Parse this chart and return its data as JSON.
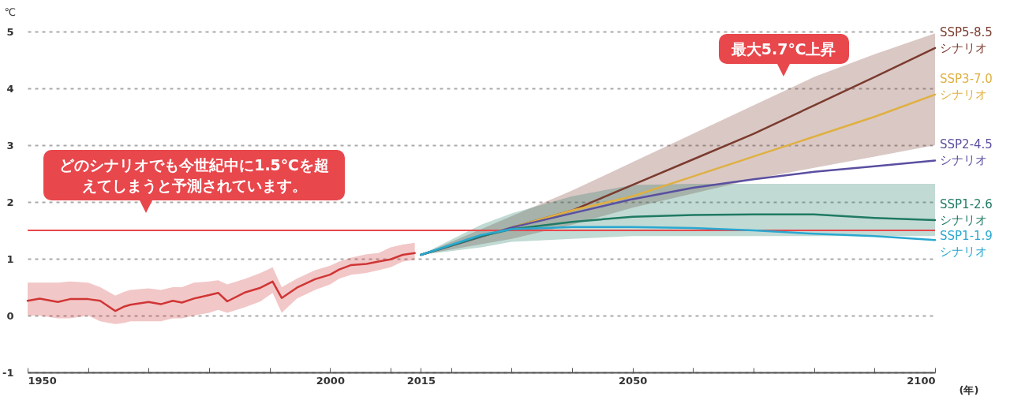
{
  "chart_data": {
    "type": "line",
    "ylabel": "℃",
    "xlabel": "(年)",
    "xlim": [
      1950,
      2100
    ],
    "xticks": [
      1950,
      {
        "value": 1960,
        "label": null
      },
      {
        "value": 1970,
        "label": null
      },
      {
        "value": 1980,
        "label": null
      },
      {
        "value": 1990,
        "label": null
      },
      2000,
      {
        "value": 2010,
        "label": null
      },
      2015,
      {
        "value": 2020,
        "label": null
      },
      {
        "value": 2030,
        "label": null
      },
      {
        "value": 2040,
        "label": null
      },
      2050,
      {
        "value": 2060,
        "label": null
      },
      {
        "value": 2070,
        "label": null
      },
      {
        "value": 2080,
        "label": null
      },
      {
        "value": 2090,
        "label": null
      },
      2100
    ],
    "ylim": [
      -1,
      5
    ],
    "yticks": [
      -1,
      0,
      1,
      2,
      3,
      4,
      5
    ],
    "grid": "y",
    "ref_lines": [
      {
        "axis": "y",
        "value": 1.5,
        "color": "#e8474c"
      }
    ],
    "annotations": [
      "どのシナリオでも今世紀中に1.5℃を超えてしまうと予測されています。",
      {
        "text": "最大5.7℃上昇",
        "x": 2075,
        "y": 3.9
      }
    ],
    "series": [
      {
        "color": "#d03535",
        "x": [
          1950,
          1952,
          1955,
          1957,
          1960,
          1962,
          1964.5,
          1966,
          1967,
          1970,
          1972,
          1974,
          1975.5,
          1977.5,
          1980,
          1981.5,
          1983,
          1986,
          1988.5,
          1990.5,
          1992,
          1994.5,
          1997.5,
          2000,
          2001.5,
          2003.5,
          2006,
          2008,
          2010,
          2012,
          2014
        ],
        "values": [
          0.26,
          0.3,
          0.24,
          0.29,
          0.29,
          0.26,
          0.08,
          0.16,
          0.19,
          0.24,
          0.2,
          0.26,
          0.23,
          0.3,
          0.36,
          0.4,
          0.25,
          0.41,
          0.49,
          0.6,
          0.31,
          0.49,
          0.64,
          0.72,
          0.81,
          0.89,
          0.91,
          0.95,
          0.99,
          1.07,
          1.1
        ],
        "lower": [
          0,
          0,
          -0.05,
          -0.05,
          0,
          -0.1,
          -0.15,
          -0.13,
          -0.1,
          -0.1,
          -0.1,
          -0.05,
          -0.05,
          0,
          0.05,
          0.1,
          0.05,
          0.15,
          0.25,
          0.4,
          0.05,
          0.3,
          0.45,
          0.55,
          0.65,
          0.72,
          0.75,
          0.8,
          0.85,
          0.95,
          0.98
        ],
        "upper": [
          0.58,
          0.58,
          0.58,
          0.6,
          0.58,
          0.5,
          0.35,
          0.42,
          0.45,
          0.48,
          0.45,
          0.5,
          0.5,
          0.58,
          0.6,
          0.62,
          0.55,
          0.65,
          0.75,
          0.85,
          0.5,
          0.65,
          0.8,
          0.88,
          0.95,
          1.02,
          1.08,
          1.1,
          1.2,
          1.25,
          1.28
        ]
      },
      {
        "name": "SSP5-8.5\nシナリオ",
        "color": "#7a3b2e",
        "x": [
          2015,
          2030,
          2040,
          2050,
          2060,
          2070,
          2080,
          2090,
          2100
        ],
        "values": [
          1.07,
          1.55,
          1.85,
          2.3,
          2.75,
          3.2,
          3.7,
          4.2,
          4.71
        ],
        "lower": [
          1.07,
          1.35,
          1.6,
          1.9,
          2.15,
          2.4,
          2.6,
          2.8,
          3.0
        ],
        "upper": [
          1.07,
          1.75,
          2.2,
          2.7,
          3.2,
          3.7,
          4.2,
          4.6,
          4.97
        ]
      },
      {
        "name": "SSP3-7.0\nシナリオ",
        "color": "#e0b040",
        "x": [
          2015,
          2030,
          2040,
          2050,
          2060,
          2070,
          2080,
          2090,
          2100
        ],
        "values": [
          1.07,
          1.55,
          1.85,
          2.1,
          2.45,
          2.8,
          3.15,
          3.5,
          3.89
        ]
      },
      {
        "name": "SSP2-4.5\nシナリオ",
        "color": "#5a4fa0",
        "x": [
          2015,
          2030,
          2040,
          2050,
          2060,
          2070,
          2080,
          2090,
          2100
        ],
        "values": [
          1.07,
          1.55,
          1.8,
          2.05,
          2.25,
          2.4,
          2.53,
          2.63,
          2.73
        ]
      },
      {
        "name": "SSP1-2.6\nシナリオ",
        "color": "#1f7a63",
        "x": [
          2015,
          2025,
          2030,
          2040,
          2050,
          2060,
          2070,
          2080,
          2090,
          2100
        ],
        "values": [
          1.07,
          1.4,
          1.52,
          1.65,
          1.74,
          1.77,
          1.78,
          1.78,
          1.72,
          1.68
        ],
        "lower": [
          1.07,
          1.2,
          1.3,
          1.35,
          1.4,
          1.4,
          1.4,
          1.4,
          1.4,
          1.4
        ],
        "upper": [
          1.07,
          1.6,
          1.8,
          2.1,
          2.3,
          2.32,
          2.32,
          2.32,
          2.32,
          2.32
        ]
      },
      {
        "name": "SSP1-1.9\nシナリオ",
        "color": "#2aa8d0",
        "x": [
          2015,
          2025,
          2030,
          2040,
          2050,
          2060,
          2070,
          2080,
          2090,
          2100
        ],
        "values": [
          1.07,
          1.42,
          1.52,
          1.56,
          1.56,
          1.54,
          1.5,
          1.44,
          1.4,
          1.33
        ]
      }
    ]
  }
}
